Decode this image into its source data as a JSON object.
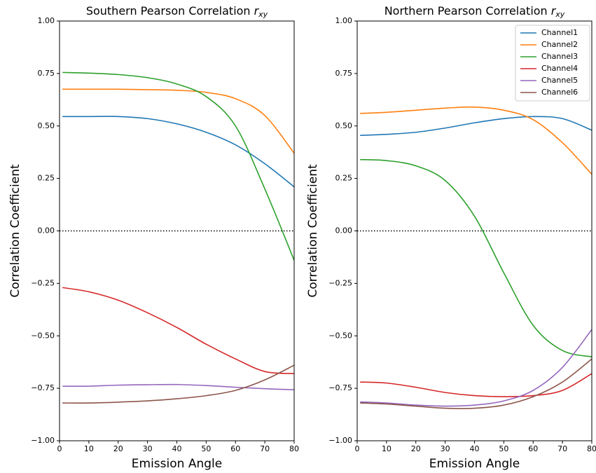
{
  "chart_data": [
    {
      "type": "line",
      "title": "Southern Pearson Correlation",
      "title_symbol": "r",
      "title_subscript": "xy",
      "x_label": "Emission Angle",
      "y_label": "Correlation Coefficient",
      "x": [
        1,
        10,
        20,
        30,
        40,
        50,
        60,
        70,
        80
      ],
      "xlim": [
        0,
        80
      ],
      "xticks": [
        0,
        10,
        20,
        30,
        40,
        50,
        60,
        70,
        80
      ],
      "ylim": [
        -1,
        1
      ],
      "yticks": [
        {
          "value": -1,
          "label": "−1.00"
        },
        {
          "value": -0.75,
          "label": "−0.75"
        },
        {
          "value": -0.5,
          "label": "−0.50"
        },
        {
          "value": -0.25,
          "label": "−0.25"
        },
        {
          "value": 0,
          "label": "0.00"
        },
        {
          "value": 0.25,
          "label": "0.25"
        },
        {
          "value": 0.5,
          "label": "0.50"
        },
        {
          "value": 0.75,
          "label": "0.75"
        },
        {
          "value": 1,
          "label": "1.00"
        }
      ],
      "reference_line": 0,
      "series": [
        {
          "color": "#1f77b4",
          "values": [
            0.545,
            0.545,
            0.545,
            0.535,
            0.51,
            0.47,
            0.41,
            0.32,
            0.21
          ]
        },
        {
          "color": "#ff7f0e",
          "values": [
            0.675,
            0.675,
            0.675,
            0.673,
            0.67,
            0.66,
            0.63,
            0.55,
            0.37
          ]
        },
        {
          "color": "#2ca02c",
          "values": [
            0.755,
            0.752,
            0.745,
            0.73,
            0.7,
            0.64,
            0.5,
            0.2,
            -0.14
          ]
        },
        {
          "color": "#d62728",
          "values": [
            -0.27,
            -0.29,
            -0.33,
            -0.39,
            -0.46,
            -0.54,
            -0.61,
            -0.67,
            -0.68
          ]
        },
        {
          "color": "#9467bd",
          "values": [
            -0.74,
            -0.74,
            -0.735,
            -0.733,
            -0.732,
            -0.737,
            -0.745,
            -0.752,
            -0.757
          ]
        },
        {
          "color": "#8c564b",
          "values": [
            -0.82,
            -0.82,
            -0.816,
            -0.81,
            -0.8,
            -0.785,
            -0.76,
            -0.71,
            -0.64
          ]
        }
      ]
    },
    {
      "type": "line",
      "title": "Northern Pearson Correlation",
      "title_symbol": "r",
      "title_subscript": "xy",
      "x_label": "Emission Angle",
      "y_label": "Correlation Coefficient",
      "x": [
        1,
        10,
        20,
        30,
        40,
        50,
        60,
        70,
        80
      ],
      "xlim": [
        0,
        80
      ],
      "xticks": [
        0,
        10,
        20,
        30,
        40,
        50,
        60,
        70,
        80
      ],
      "ylim": [
        -1,
        1
      ],
      "yticks": [
        {
          "value": -1,
          "label": "−1.00"
        },
        {
          "value": -0.75,
          "label": "−0.75"
        },
        {
          "value": -0.5,
          "label": "−0.50"
        },
        {
          "value": -0.25,
          "label": "−0.25"
        },
        {
          "value": 0,
          "label": "0.00"
        },
        {
          "value": 0.25,
          "label": "0.25"
        },
        {
          "value": 0.5,
          "label": "0.50"
        },
        {
          "value": 0.75,
          "label": "0.75"
        },
        {
          "value": 1,
          "label": "1.00"
        }
      ],
      "reference_line": 0,
      "legend": "upper right",
      "series": [
        {
          "name": "Channel1",
          "color": "#1f77b4",
          "values": [
            0.455,
            0.46,
            0.47,
            0.49,
            0.515,
            0.535,
            0.545,
            0.535,
            0.48
          ]
        },
        {
          "name": "Channel2",
          "color": "#ff7f0e",
          "values": [
            0.56,
            0.565,
            0.575,
            0.585,
            0.59,
            0.575,
            0.53,
            0.42,
            0.27
          ]
        },
        {
          "name": "Channel3",
          "color": "#2ca02c",
          "values": [
            0.34,
            0.335,
            0.31,
            0.24,
            0.07,
            -0.2,
            -0.45,
            -0.57,
            -0.6
          ]
        },
        {
          "name": "Channel4",
          "color": "#d62728",
          "values": [
            -0.72,
            -0.725,
            -0.745,
            -0.77,
            -0.785,
            -0.79,
            -0.785,
            -0.76,
            -0.68
          ]
        },
        {
          "name": "Channel5",
          "color": "#9467bd",
          "values": [
            -0.815,
            -0.82,
            -0.83,
            -0.835,
            -0.83,
            -0.81,
            -0.76,
            -0.65,
            -0.47
          ]
        },
        {
          "name": "Channel6",
          "color": "#8c564b",
          "values": [
            -0.82,
            -0.825,
            -0.835,
            -0.845,
            -0.845,
            -0.83,
            -0.79,
            -0.72,
            -0.61
          ]
        }
      ]
    }
  ]
}
